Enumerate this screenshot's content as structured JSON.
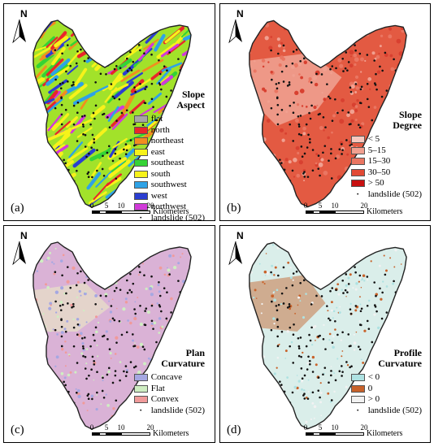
{
  "north_label": "N",
  "scale": {
    "ticks": [
      "0",
      "5",
      "10",
      "20"
    ],
    "unit": "Kilometers"
  },
  "colors": {
    "outline": "#222222",
    "landslide": "#111111",
    "aspect_stripe_a": "#a2e22a",
    "aspect_stripe_b": "#c24ad6",
    "slope_base": "#e35a42",
    "plan_base": "#dab2d6",
    "profile_base": "#daeeea"
  },
  "panels": [
    {
      "id": "a",
      "label": "(a)",
      "legend_title_lines": [
        "Slope",
        "Aspect"
      ],
      "legend_items": [
        {
          "label": "flat",
          "color": "#a6a6a6"
        },
        {
          "label": "north",
          "color": "#e8262b"
        },
        {
          "label": "northeast",
          "color": "#f28d1f"
        },
        {
          "label": "east",
          "color": "#f7f21a"
        },
        {
          "label": "southeast",
          "color": "#35d335"
        },
        {
          "label": "south",
          "color": "#f7f21a"
        },
        {
          "label": "southwest",
          "color": "#2ea2e6"
        },
        {
          "label": "west",
          "color": "#2b3ed1"
        },
        {
          "label": "northwest",
          "color": "#d13ad9"
        }
      ],
      "landslide_label": "landslide (502)"
    },
    {
      "id": "b",
      "label": "(b)",
      "legend_title_lines": [
        "Slope",
        "Degree"
      ],
      "legend_items": [
        {
          "label": "< 5",
          "color": "#f7c9c0"
        },
        {
          "label": "5–15",
          "color": "#f1a090"
        },
        {
          "label": "15–30",
          "color": "#ea7662"
        },
        {
          "label": "30–50",
          "color": "#e24a35"
        },
        {
          "label": "> 50",
          "color": "#c81010"
        }
      ],
      "landslide_label": "landslide (502)"
    },
    {
      "id": "c",
      "label": "(c)",
      "legend_title_lines": [
        "Plan",
        "Curvature"
      ],
      "legend_items": [
        {
          "label": "Concave",
          "color": "#a5a7e2"
        },
        {
          "label": "Flat",
          "color": "#cfeec2"
        },
        {
          "label": "Convex",
          "color": "#f09a9a"
        }
      ],
      "landslide_label": "landslide (502)"
    },
    {
      "id": "d",
      "label": "(d)",
      "legend_title_lines": [
        "Profile",
        "Curvature"
      ],
      "legend_items": [
        {
          "label": "< 0",
          "color": "#aee2e2"
        },
        {
          "label": "0",
          "color": "#c8622a"
        },
        {
          "label": "> 0",
          "color": "#f2f2f2"
        }
      ],
      "landslide_label": "landslide (502)"
    }
  ]
}
